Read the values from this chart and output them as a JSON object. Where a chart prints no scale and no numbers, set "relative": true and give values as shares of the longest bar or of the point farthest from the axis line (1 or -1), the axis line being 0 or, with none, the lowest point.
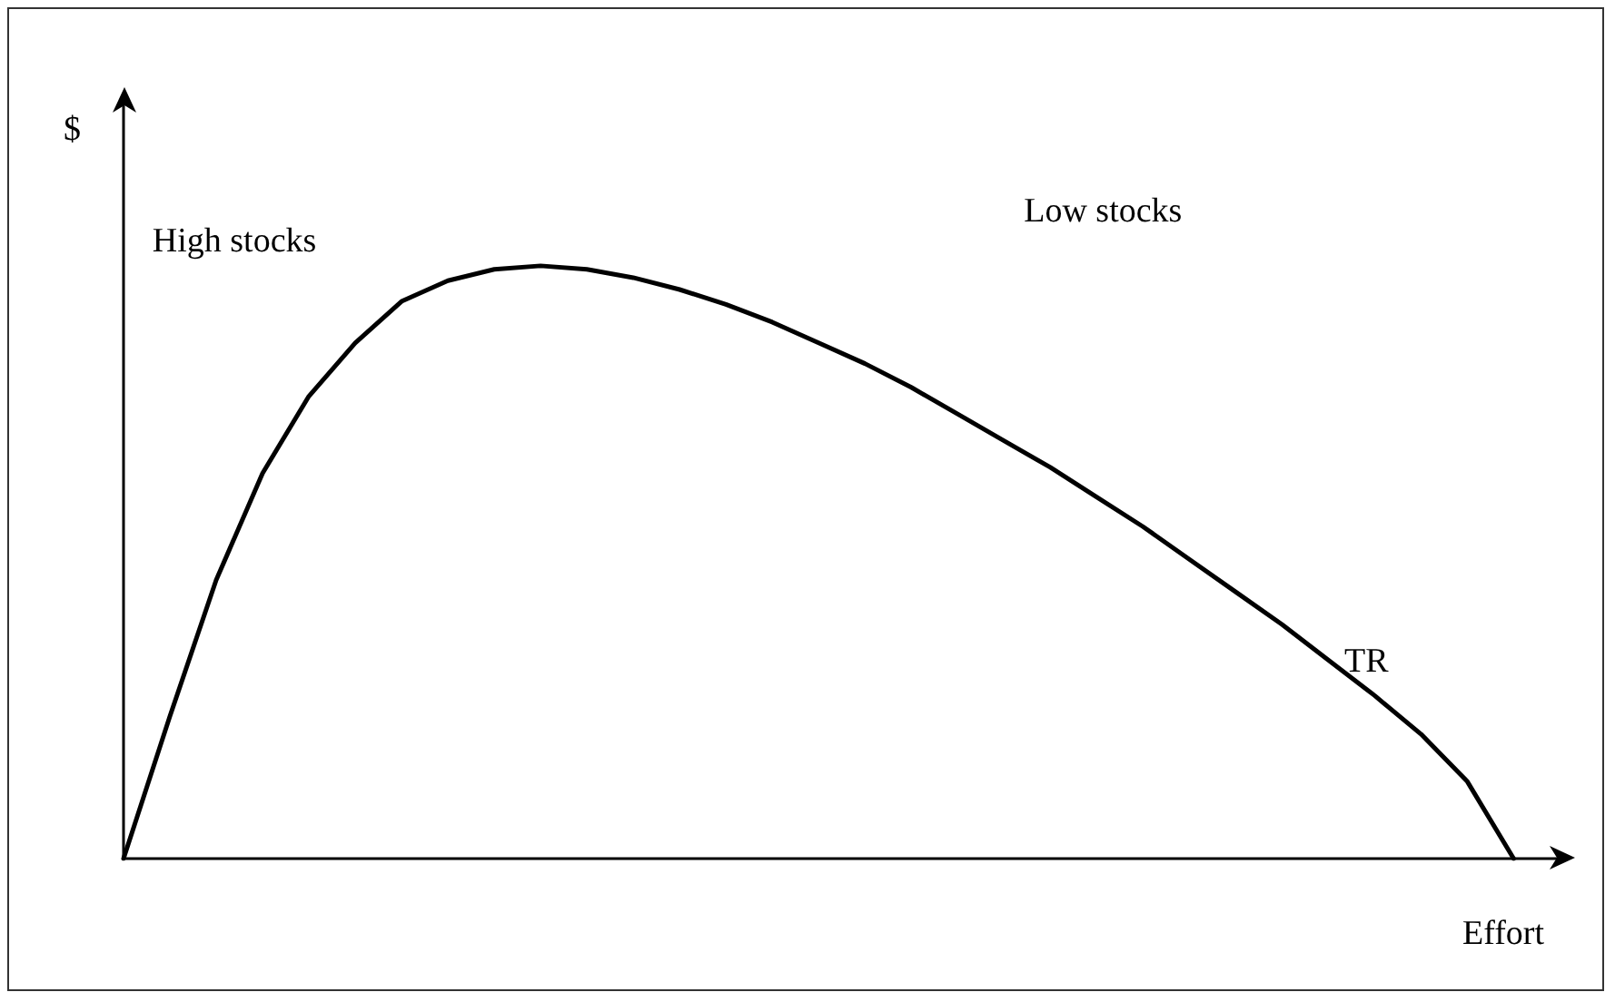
{
  "chart_data": {
    "type": "line",
    "relative": true,
    "xlabel": "Effort",
    "ylabel": "$",
    "categories": [
      null,
      null,
      null,
      null,
      null,
      null,
      null,
      null,
      null,
      null,
      null,
      null,
      null,
      null,
      null,
      null,
      null,
      null,
      null,
      null,
      null,
      null,
      null,
      null,
      null,
      null,
      null,
      null,
      null,
      null,
      null
    ],
    "series": [
      {
        "name": "TR",
        "color": "#000000",
        "values": [
          0,
          0.24,
          0.47,
          0.65,
          0.78,
          0.87,
          0.94,
          0.975,
          0.994,
          1,
          0.994,
          0.98,
          0.96,
          0.935,
          0.905,
          0.87,
          0.835,
          0.795,
          0.75,
          0.705,
          0.66,
          0.61,
          0.56,
          0.505,
          0.45,
          0.395,
          0.335,
          0.275,
          0.21,
          0.13,
          0
        ]
      }
    ],
    "annotations": [
      "High stocks",
      "Low stocks"
    ],
    "marker": "none",
    "line_style": "solid",
    "grid": false,
    "legend": false
  }
}
